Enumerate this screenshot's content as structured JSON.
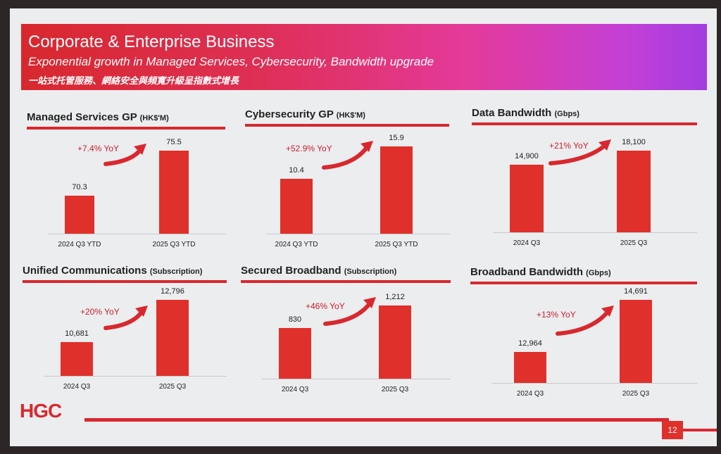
{
  "slide": {
    "title": "Corporate & Enterprise Business",
    "subtitle": "Exponential growth in Managed Services, Cybersecurity, Bandwidth upgrade",
    "subtitle_zh": "一站式托管服務、網絡安全與頻寬升級呈指數式增長",
    "logo": "HGC",
    "page_number": "12",
    "accent_color": "#e0302b"
  },
  "chart_data": [
    {
      "type": "bar",
      "title": "Managed Services GP",
      "unit": "(HK$'M)",
      "categories": [
        "2024 Q3 YTD",
        "2025 Q3 YTD"
      ],
      "values": [
        70.3,
        75.5
      ],
      "value_labels": [
        "70.3",
        "75.5"
      ],
      "growth_label": "+7.4% YoY"
    },
    {
      "type": "bar",
      "title": "Cybersecurity GP",
      "unit": "(HK$'M)",
      "categories": [
        "2024 Q3 YTD",
        "2025 Q3 YTD"
      ],
      "values": [
        10.4,
        15.9
      ],
      "value_labels": [
        "10.4",
        "15.9"
      ],
      "growth_label": "+52.9% YoY"
    },
    {
      "type": "bar",
      "title": "Data Bandwidth",
      "unit": "(Gbps)",
      "categories": [
        "2024 Q3",
        "2025 Q3"
      ],
      "values": [
        14900,
        18100
      ],
      "value_labels": [
        "14,900",
        "18,100"
      ],
      "growth_label": "+21% YoY"
    },
    {
      "type": "bar",
      "title": "Unified Communications",
      "unit": "(Subscription)",
      "categories": [
        "2024 Q3",
        "2025 Q3"
      ],
      "values": [
        10681,
        12796
      ],
      "value_labels": [
        "10,681",
        "12,796"
      ],
      "growth_label": "+20% YoY"
    },
    {
      "type": "bar",
      "title": "Secured Broadband",
      "unit": "(Subscription)",
      "categories": [
        "2024 Q3",
        "2025 Q3"
      ],
      "values": [
        830,
        1212
      ],
      "value_labels": [
        "830",
        "1,212"
      ],
      "growth_label": "+46% YoY"
    },
    {
      "type": "bar",
      "title": "Broadband Bandwidth",
      "unit": "(Gbps)",
      "categories": [
        "2024 Q3",
        "2025 Q3"
      ],
      "values": [
        12964,
        14691
      ],
      "value_labels": [
        "12,964",
        "14,691"
      ],
      "growth_label": "+13% YoY"
    }
  ]
}
